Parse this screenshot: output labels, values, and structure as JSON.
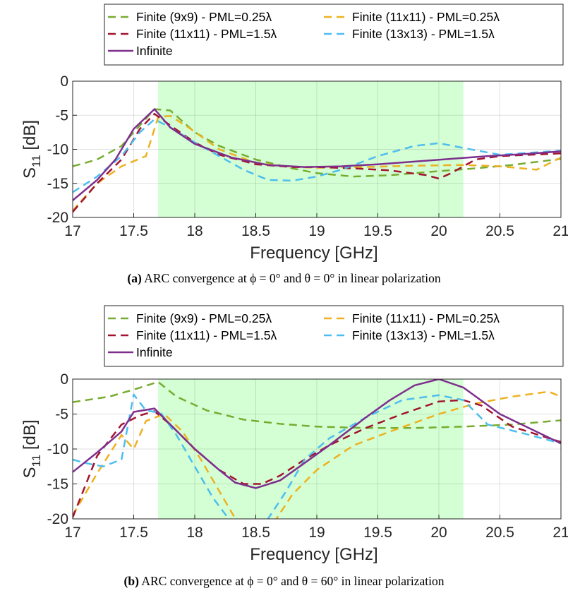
{
  "colors": {
    "finite_9x9": "#77ac30",
    "finite_11x11_025": "#edb120",
    "finite_11x11_15": "#a2142f",
    "finite_13x13": "#4dbeee",
    "infinite": "#7e2f8e",
    "band_fill": "#ccffcc"
  },
  "chart_data": [
    {
      "type": "line",
      "caption_label": "(a)",
      "caption_text": "ARC convergence at ϕ = 0° and θ = 0° in linear polarization",
      "xlabel": "Frequency [GHz]",
      "ylabel_main": "S",
      "ylabel_sub": "11",
      "ylabel_unit": " [dB]",
      "xlim": [
        17,
        21
      ],
      "ylim": [
        -20,
        0
      ],
      "xticks": [
        "17",
        "17.5",
        "18",
        "18.5",
        "19",
        "19.5",
        "20",
        "20.5",
        "21"
      ],
      "yticks": [
        "-20",
        "-15",
        "-10",
        "-5",
        "0"
      ],
      "grid": true,
      "shaded_band": [
        17.7,
        20.2
      ],
      "legend": [
        "Finite (9x9) - PML=0.25λ",
        "Finite (11x11) - PML=0.25λ",
        "Finite (11x11) - PML=1.5λ",
        "Finite (13x13) - PML=1.5λ",
        "Infinite"
      ],
      "series": [
        {
          "name": "Finite (9x9) - PML=0.25λ",
          "style": "dashed",
          "color_key": "finite_9x9",
          "x": [
            17,
            17.2,
            17.4,
            17.55,
            17.67,
            17.8,
            18.0,
            18.2,
            18.5,
            18.8,
            19.0,
            19.3,
            19.6,
            20.0,
            20.3,
            20.6,
            21
          ],
          "y": [
            -12.5,
            -11.5,
            -9.5,
            -6.5,
            -4.1,
            -4.3,
            -7.5,
            -9.5,
            -11.5,
            -12.8,
            -13.5,
            -14.0,
            -13.8,
            -13.2,
            -12.8,
            -12.3,
            -11.4
          ]
        },
        {
          "name": "Finite (11x11) - PML=0.25λ",
          "style": "dashed",
          "color_key": "finite_11x11_025",
          "x": [
            17,
            17.2,
            17.4,
            17.6,
            17.7,
            17.8,
            17.95,
            18.2,
            18.5,
            18.8,
            19.0,
            19.4,
            19.8,
            20.2,
            20.5,
            20.8,
            21
          ],
          "y": [
            -19.0,
            -15.0,
            -12.5,
            -11.0,
            -5.3,
            -5.1,
            -6.8,
            -10.0,
            -12.0,
            -12.6,
            -12.7,
            -12.6,
            -12.4,
            -12.3,
            -12.5,
            -13.0,
            -11.2
          ]
        },
        {
          "name": "Finite (11x11) - PML=1.5λ",
          "style": "dashed",
          "color_key": "finite_11x11_15",
          "x": [
            17,
            17.2,
            17.4,
            17.55,
            17.67,
            17.8,
            18.0,
            18.2,
            18.5,
            18.8,
            19.0,
            19.3,
            19.6,
            19.9,
            20.0,
            20.1,
            20.3,
            20.5,
            21
          ],
          "y": [
            -19.2,
            -15.0,
            -11.5,
            -7.0,
            -4.8,
            -6.5,
            -9.0,
            -10.8,
            -12.2,
            -12.6,
            -12.6,
            -12.8,
            -13.1,
            -13.8,
            -14.3,
            -13.5,
            -11.5,
            -11.0,
            -10.6
          ]
        },
        {
          "name": "Finite (13x13) - PML=1.5λ",
          "style": "dashed",
          "color_key": "finite_13x13",
          "x": [
            17,
            17.2,
            17.4,
            17.55,
            17.67,
            17.8,
            18.0,
            18.2,
            18.4,
            18.6,
            18.8,
            19.0,
            19.2,
            19.5,
            19.8,
            20.0,
            20.2,
            20.5,
            21
          ],
          "y": [
            -16.3,
            -14.0,
            -11.0,
            -7.5,
            -5.6,
            -6.8,
            -9.0,
            -11.0,
            -13.0,
            -14.5,
            -14.6,
            -14.0,
            -13.0,
            -11.0,
            -9.5,
            -9.1,
            -9.8,
            -10.8,
            -10.2
          ]
        },
        {
          "name": "Infinite",
          "style": "solid",
          "color_key": "infinite",
          "x": [
            17,
            17.2,
            17.35,
            17.5,
            17.67,
            17.8,
            18.0,
            18.3,
            18.6,
            18.9,
            19.2,
            19.5,
            19.8,
            20.1,
            20.4,
            20.7,
            21
          ],
          "y": [
            -17.5,
            -14.5,
            -11.5,
            -7.0,
            -4.1,
            -6.8,
            -9.2,
            -11.2,
            -12.3,
            -12.6,
            -12.5,
            -12.2,
            -11.8,
            -11.4,
            -11.0,
            -10.7,
            -10.3
          ]
        }
      ]
    },
    {
      "type": "line",
      "caption_label": "(b)",
      "caption_text": "ARC convergence at ϕ = 0° and θ = 60° in linear polarization",
      "xlabel": "Frequency [GHz]",
      "ylabel_main": "S",
      "ylabel_sub": "11",
      "ylabel_unit": " [dB]",
      "xlim": [
        17,
        21
      ],
      "ylim": [
        -20,
        0
      ],
      "xticks": [
        "17",
        "17.5",
        "18",
        "18.5",
        "19",
        "19.5",
        "20",
        "20.5",
        "21"
      ],
      "yticks": [
        "-20",
        "-15",
        "-10",
        "-5",
        "0"
      ],
      "grid": true,
      "shaded_band": [
        17.7,
        20.2
      ],
      "legend": [
        "Finite (9x9) - PML=0.25λ",
        "Finite (11x11) - PML=0.25λ",
        "Finite (11x11) - PML=1.5λ",
        "Finite (13x13) - PML=1.5λ",
        "Infinite"
      ],
      "series": [
        {
          "name": "Finite (9x9) - PML=0.25λ",
          "style": "dashed",
          "color_key": "finite_9x9",
          "x": [
            17,
            17.3,
            17.5,
            17.7,
            17.85,
            18.1,
            18.4,
            18.7,
            19.0,
            19.4,
            19.8,
            20.2,
            20.6,
            21
          ],
          "y": [
            -3.3,
            -2.5,
            -1.5,
            -0.4,
            -2.5,
            -4.5,
            -5.8,
            -6.4,
            -6.8,
            -7.0,
            -7.0,
            -6.8,
            -6.5,
            -5.9
          ]
        },
        {
          "name": "Finite (11x11) - PML=0.25λ",
          "style": "dashed",
          "color_key": "finite_11x11_025",
          "x": [
            17,
            17.2,
            17.4,
            17.5,
            17.6,
            17.75,
            17.9,
            18.05,
            18.2,
            18.35,
            18.45,
            18.55,
            18.65,
            18.8,
            19.0,
            19.3,
            19.6,
            20.0,
            20.3,
            20.6,
            20.9,
            21
          ],
          "y": [
            -19.5,
            -13.5,
            -8.0,
            -10.0,
            -6.0,
            -5.0,
            -7.5,
            -11.5,
            -16.0,
            -20.5,
            -24.0,
            -22.0,
            -20.5,
            -16.5,
            -13.0,
            -9.5,
            -7.5,
            -5.0,
            -3.5,
            -2.5,
            -1.8,
            -2.5
          ]
        },
        {
          "name": "Finite (11x11) - PML=1.5λ",
          "style": "dashed",
          "color_key": "finite_11x11_15",
          "x": [
            17,
            17.2,
            17.4,
            17.55,
            17.67,
            17.8,
            18.0,
            18.2,
            18.4,
            18.55,
            18.7,
            18.9,
            19.1,
            19.4,
            19.7,
            20.0,
            20.2,
            20.35,
            20.6,
            21
          ],
          "y": [
            -19.8,
            -11.0,
            -6.5,
            -5.2,
            -4.6,
            -6.5,
            -10.0,
            -13.0,
            -15.0,
            -15.0,
            -13.8,
            -11.5,
            -9.5,
            -7.0,
            -5.0,
            -3.2,
            -3.0,
            -3.8,
            -6.8,
            -9.0
          ]
        },
        {
          "name": "Finite (13x13) - PML=1.5λ",
          "style": "dashed",
          "color_key": "finite_13x13",
          "x": [
            17,
            17.1,
            17.25,
            17.4,
            17.5,
            17.6,
            17.72,
            17.85,
            18.0,
            18.15,
            18.3,
            18.4,
            18.5,
            18.6,
            18.75,
            18.9,
            19.1,
            19.4,
            19.7,
            20.0,
            20.2,
            20.4,
            20.7,
            21
          ],
          "y": [
            -11.5,
            -12.0,
            -12.5,
            -11.5,
            -2.2,
            -4.5,
            -4.8,
            -8.0,
            -12.5,
            -17.0,
            -20.5,
            -22.5,
            -21.5,
            -20.0,
            -16.0,
            -11.5,
            -8.5,
            -5.5,
            -3.0,
            -2.3,
            -3.0,
            -6.5,
            -7.8,
            -9.2
          ]
        },
        {
          "name": "Infinite",
          "style": "solid",
          "color_key": "infinite",
          "x": [
            17,
            17.2,
            17.4,
            17.5,
            17.67,
            17.8,
            18.0,
            18.2,
            18.33,
            18.5,
            18.7,
            18.9,
            19.1,
            19.4,
            19.6,
            19.8,
            20.0,
            20.2,
            20.5,
            21
          ],
          "y": [
            -13.3,
            -10.5,
            -7.5,
            -4.7,
            -4.2,
            -6.5,
            -10.0,
            -13.0,
            -14.8,
            -15.6,
            -14.5,
            -12.0,
            -9.5,
            -5.5,
            -3.0,
            -0.9,
            0,
            -1.2,
            -5.0,
            -9.2
          ]
        }
      ]
    }
  ]
}
